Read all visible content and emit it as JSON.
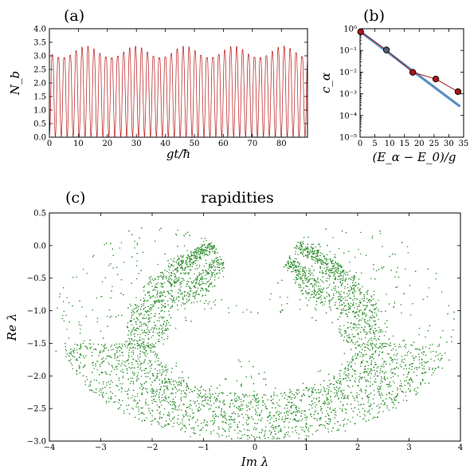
{
  "figure": {
    "panel_a_tag": "(a)",
    "panel_b_tag": "(b)",
    "panel_c_tag": "(c)"
  },
  "colors": {
    "oscillation": "#b81414",
    "fit_line": "#5a8fc0",
    "point_fill": "#a31818",
    "first_point_fill": "#505a6e",
    "scatter": "#2f8f2f"
  },
  "chart_data": [
    {
      "id": "a",
      "type": "line",
      "title": "",
      "xlabel": "gt/ħ",
      "ylabel": "N_b",
      "xlim": [
        0,
        89
      ],
      "ylim": [
        0.0,
        4.0
      ],
      "xticks": [
        "0",
        "10",
        "20",
        "30",
        "40",
        "50",
        "60",
        "70",
        "80"
      ],
      "yticks": [
        "0.0",
        "0.5",
        "1.0",
        "1.5",
        "2.0",
        "2.5",
        "3.0",
        "3.5",
        "4.0"
      ],
      "series": [
        {
          "description_values": "rapid oscillation between ~0.02 and ~3.5 with period ~2.0 and a secondary dip to ~2.9 near the maxima",
          "x_start": 0,
          "x_end": 89,
          "period": 2.05,
          "min": 0.02,
          "max": 3.48,
          "secondary_dip": 2.9
        }
      ]
    },
    {
      "id": "b",
      "type": "scatter",
      "title": "",
      "xlabel": "(E_α − E_0)/g",
      "ylabel": "c_α",
      "xlim": [
        0,
        35
      ],
      "ylim_log10": [
        -5,
        0
      ],
      "xticks": [
        "0",
        "5",
        "10",
        "15",
        "20",
        "25",
        "30",
        "35"
      ],
      "yticks": [
        "10⁻⁵",
        "10⁻⁴",
        "10⁻³",
        "10⁻²",
        "10⁻¹",
        "10⁰"
      ],
      "series": [
        {
          "kind": "points",
          "x": [
            0.2,
            8.9,
            17.8,
            25.6,
            33.1
          ],
          "y": [
            0.72,
            0.105,
            0.0098,
            0.0048,
            0.00125
          ]
        },
        {
          "kind": "fit",
          "x": [
            0,
            33.5
          ],
          "y": [
            0.75,
            0.00028
          ]
        }
      ]
    },
    {
      "id": "c",
      "type": "scatter",
      "title": "rapidities",
      "xlabel": "Im λ",
      "ylabel": "Re λ",
      "xlim": [
        -4,
        4
      ],
      "ylim": [
        -3.0,
        0.5
      ],
      "xticks": [
        "−4",
        "−3",
        "−2",
        "−1",
        "0",
        "1",
        "2",
        "3",
        "4"
      ],
      "yticks": [
        "−3.0",
        "−2.5",
        "−2.0",
        "−1.5",
        "−1.0",
        "−0.5",
        "0.0",
        "0.5"
      ],
      "series": [
        {
          "description_values": "dense green point cloud forming a butterfly/mask shape, approx. 6000 points, symmetric about Im λ = 0, with an empty central hole between Re λ ≈ -2.0 and -1.1",
          "point_count_approx": 6000
        }
      ]
    }
  ]
}
